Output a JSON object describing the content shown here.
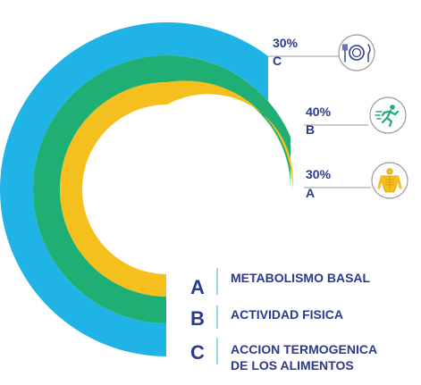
{
  "chart_data": {
    "type": "radial-bar",
    "series": [
      {
        "code": "C",
        "value": 30,
        "percent_label": "30%",
        "color": "#1fb3e6",
        "icon": "plate-cutlery-icon"
      },
      {
        "code": "B",
        "value": 40,
        "percent_label": "40%",
        "color": "#1fae74",
        "icon": "running-person-icon"
      },
      {
        "code": "A",
        "value": 30,
        "percent_label": "30%",
        "color": "#f5c01d",
        "icon": "human-body-icon"
      }
    ],
    "legend": [
      {
        "letter": "A",
        "lines": [
          "METABOLISMO BASAL"
        ]
      },
      {
        "letter": "B",
        "lines": [
          "ACTIVIDAD FISICA"
        ]
      },
      {
        "letter": "C",
        "lines": [
          "ACCION TERMOGENICA",
          "DE LOS ALIMENTOS"
        ]
      }
    ]
  },
  "colors": {
    "text": "#2b3990",
    "connector": "#9a9a9a",
    "legend_divider": "#7fc8e8"
  }
}
